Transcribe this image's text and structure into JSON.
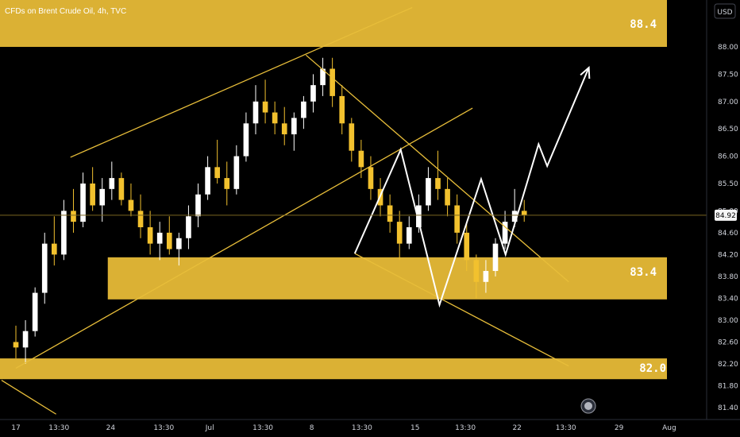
{
  "title": "CFDs on Brent Crude Oil, 4h, TVC",
  "currency": "USD",
  "colors": {
    "background": "#000000",
    "zone": "#dbb134",
    "trendline": "#e8be3a",
    "projection": "#ffffff",
    "candle_up": "#ffffff",
    "candle_down": "#f2c12e",
    "price_line": "#7a6520",
    "price_badge_bg": "#f5f5f5",
    "price_badge_text": "#000000",
    "axis_text": "#d1d4dc"
  },
  "chart_data": {
    "type": "candlestick",
    "y_range": [
      81.1,
      89.0
    ],
    "x_range_days": [
      0,
      46
    ],
    "y_ticks": [
      "88.00",
      "87.50",
      "87.00",
      "86.50",
      "86.00",
      "85.50",
      "85.00",
      "84.60",
      "84.20",
      "83.80",
      "83.40",
      "83.00",
      "82.60",
      "82.20",
      "81.80",
      "81.40"
    ],
    "x_ticks": [
      {
        "label": "17",
        "day": 1
      },
      {
        "label": "13:30",
        "day": 4
      },
      {
        "label": "24",
        "day": 7.6
      },
      {
        "label": "13:30",
        "day": 11.3
      },
      {
        "label": "Jul",
        "day": 14.5
      },
      {
        "label": "13:30",
        "day": 18.2
      },
      {
        "label": "8",
        "day": 21.6
      },
      {
        "label": "13:30",
        "day": 25.1
      },
      {
        "label": "15",
        "day": 28.8
      },
      {
        "label": "13:30",
        "day": 32.3
      },
      {
        "label": "22",
        "day": 35.9
      },
      {
        "label": "13:30",
        "day": 39.3
      },
      {
        "label": "29",
        "day": 43
      },
      {
        "label": "Aug",
        "day": 46.5
      }
    ],
    "current_price": "84.92",
    "zones": [
      {
        "label": "88.4",
        "top": 89.0,
        "bottom": 88.0,
        "day_start": 0,
        "day_end": 46
      },
      {
        "label": "83.4",
        "top": 84.15,
        "bottom": 83.38,
        "day_start": 7.4,
        "day_end": 46
      },
      {
        "label": "82.0",
        "top": 82.3,
        "bottom": 81.92,
        "day_start": 0,
        "day_end": 46
      }
    ],
    "trendlines": [
      {
        "from": [
          4.8,
          85.98
        ],
        "to": [
          28.6,
          88.72
        ]
      },
      {
        "from": [
          1.0,
          82.12
        ],
        "to": [
          32.8,
          86.88
        ]
      },
      {
        "from": [
          21.2,
          87.85
        ],
        "to": [
          39.5,
          83.7
        ]
      },
      {
        "from": [
          24.6,
          84.22
        ],
        "to": [
          39.5,
          82.16
        ]
      },
      {
        "from": [
          0,
          81.9
        ],
        "to": [
          3.8,
          81.28
        ]
      }
    ],
    "projection": [
      [
        24.6,
        84.22
      ],
      [
        27.8,
        86.12
      ],
      [
        30.5,
        83.28
      ],
      [
        33.4,
        85.58
      ],
      [
        35.1,
        84.2
      ],
      [
        37.4,
        86.22
      ],
      [
        38.0,
        85.82
      ],
      [
        40.9,
        87.62
      ]
    ],
    "candles_ohlc": [
      [
        82.6,
        82.9,
        82.3,
        82.5
      ],
      [
        82.5,
        83.0,
        82.2,
        82.8
      ],
      [
        82.8,
        83.6,
        82.7,
        83.5
      ],
      [
        83.5,
        84.6,
        83.3,
        84.4
      ],
      [
        84.4,
        84.9,
        84.0,
        84.2
      ],
      [
        84.2,
        85.2,
        84.1,
        85.0
      ],
      [
        85.0,
        85.4,
        84.6,
        84.8
      ],
      [
        84.8,
        85.7,
        84.7,
        85.5
      ],
      [
        85.5,
        85.8,
        85.0,
        85.1
      ],
      [
        85.1,
        85.6,
        84.8,
        85.4
      ],
      [
        85.4,
        85.9,
        85.2,
        85.6
      ],
      [
        85.6,
        85.7,
        85.1,
        85.2
      ],
      [
        85.2,
        85.5,
        84.9,
        85.0
      ],
      [
        85.0,
        85.3,
        84.5,
        84.7
      ],
      [
        84.7,
        85.0,
        84.2,
        84.4
      ],
      [
        84.4,
        84.8,
        84.1,
        84.6
      ],
      [
        84.6,
        84.9,
        84.2,
        84.3
      ],
      [
        84.3,
        84.6,
        84.0,
        84.5
      ],
      [
        84.5,
        85.1,
        84.3,
        84.9
      ],
      [
        84.9,
        85.5,
        84.7,
        85.3
      ],
      [
        85.3,
        86.0,
        85.2,
        85.8
      ],
      [
        85.8,
        86.3,
        85.5,
        85.6
      ],
      [
        85.6,
        85.9,
        85.1,
        85.4
      ],
      [
        85.4,
        86.2,
        85.3,
        86.0
      ],
      [
        86.0,
        86.8,
        85.9,
        86.6
      ],
      [
        86.6,
        87.3,
        86.4,
        87.0
      ],
      [
        87.0,
        87.4,
        86.6,
        86.8
      ],
      [
        86.8,
        87.0,
        86.4,
        86.6
      ],
      [
        86.6,
        86.9,
        86.2,
        86.4
      ],
      [
        86.4,
        86.8,
        86.1,
        86.7
      ],
      [
        86.7,
        87.1,
        86.5,
        87.0
      ],
      [
        87.0,
        87.5,
        86.8,
        87.3
      ],
      [
        87.3,
        87.8,
        87.1,
        87.6
      ],
      [
        87.6,
        87.8,
        86.9,
        87.1
      ],
      [
        87.1,
        87.3,
        86.4,
        86.6
      ],
      [
        86.6,
        86.7,
        85.9,
        86.1
      ],
      [
        86.1,
        86.3,
        85.6,
        85.8
      ],
      [
        85.8,
        86.0,
        85.2,
        85.4
      ],
      [
        85.4,
        85.6,
        84.9,
        85.1
      ],
      [
        85.1,
        85.3,
        84.6,
        84.8
      ],
      [
        84.8,
        85.0,
        84.1,
        84.4
      ],
      [
        84.4,
        84.9,
        84.3,
        84.7
      ],
      [
        84.7,
        85.3,
        84.6,
        85.1
      ],
      [
        85.1,
        85.8,
        85.0,
        85.6
      ],
      [
        85.6,
        86.1,
        85.2,
        85.4
      ],
      [
        85.4,
        85.6,
        84.9,
        85.1
      ],
      [
        85.1,
        85.3,
        84.4,
        84.6
      ],
      [
        84.6,
        84.8,
        83.9,
        84.1
      ],
      [
        84.1,
        84.2,
        83.4,
        83.7
      ],
      [
        83.7,
        84.1,
        83.5,
        83.9
      ],
      [
        83.9,
        84.5,
        83.8,
        84.4
      ],
      [
        84.4,
        85.0,
        84.3,
        84.8
      ],
      [
        84.8,
        85.4,
        84.7,
        85.0
      ],
      [
        85.0,
        85.2,
        84.8,
        84.92
      ]
    ],
    "candle_day_start": 1.0,
    "candle_day_end": 36.4
  },
  "zone_labels": {
    "top": "88.4",
    "mid": "83.4",
    "bottom": "82.0"
  },
  "price_badge": "84.92",
  "scale_button": "USD"
}
